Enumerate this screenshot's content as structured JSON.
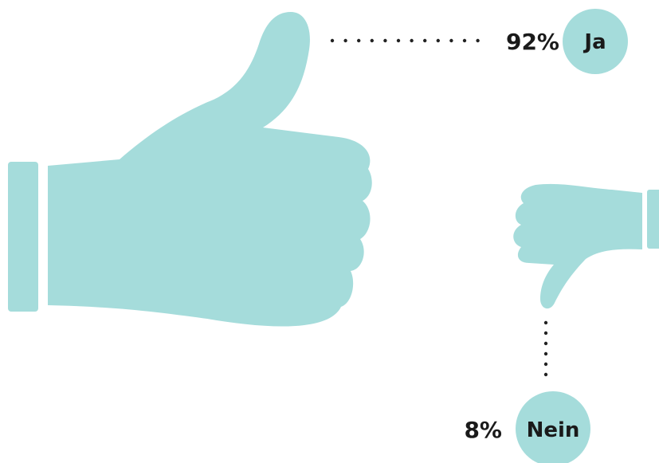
{
  "colors": {
    "hand": "#a5dcdb",
    "badge": "#a5dcdb",
    "text": "#1a1a1a",
    "dots": "#222222"
  },
  "icons": {
    "yes": "thumbs-up-icon",
    "no": "thumbs-down-icon"
  },
  "chart_data": {
    "type": "pie",
    "categories": [
      "Ja",
      "Nein"
    ],
    "values": [
      92,
      8
    ],
    "labels": [
      "92%",
      "8%"
    ],
    "title": "",
    "legend": "none"
  }
}
